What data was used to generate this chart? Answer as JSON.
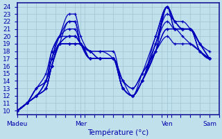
{
  "background_color": "#c0e0ec",
  "grid_color": "#a0c4d4",
  "line_color": "#0000bb",
  "xlabel": "Température (°c)",
  "ylim": [
    9.5,
    24.5
  ],
  "yticks": [
    10,
    11,
    12,
    13,
    14,
    15,
    16,
    17,
    18,
    19,
    20,
    21,
    22,
    23,
    24
  ],
  "xtick_labels": [
    "Madeu",
    "Mer",
    "Ven",
    "Sam"
  ],
  "xtick_positions": [
    0,
    0.33,
    0.78,
    1.0
  ],
  "series": [
    {
      "pts": [
        [
          0,
          10
        ],
        [
          0.05,
          11
        ],
        [
          0.1,
          12
        ],
        [
          0.15,
          13
        ],
        [
          0.18,
          16
        ],
        [
          0.22,
          19
        ],
        [
          0.27,
          22
        ],
        [
          0.3,
          22
        ],
        [
          0.33,
          19
        ],
        [
          0.38,
          17
        ],
        [
          0.43,
          17
        ],
        [
          0.5,
          17
        ],
        [
          0.55,
          13
        ],
        [
          0.6,
          12
        ],
        [
          0.65,
          14
        ],
        [
          0.72,
          19
        ],
        [
          0.78,
          24
        ],
        [
          0.82,
          22
        ],
        [
          0.86,
          21
        ],
        [
          0.9,
          21
        ],
        [
          0.95,
          19
        ],
        [
          1.0,
          17
        ]
      ]
    },
    {
      "pts": [
        [
          0,
          10
        ],
        [
          0.05,
          11
        ],
        [
          0.1,
          13
        ],
        [
          0.15,
          14
        ],
        [
          0.18,
          17
        ],
        [
          0.22,
          20
        ],
        [
          0.27,
          23
        ],
        [
          0.3,
          23
        ],
        [
          0.33,
          20
        ],
        [
          0.38,
          18
        ],
        [
          0.43,
          18
        ],
        [
          0.5,
          18
        ],
        [
          0.55,
          13
        ],
        [
          0.6,
          12
        ],
        [
          0.65,
          14
        ],
        [
          0.72,
          20
        ],
        [
          0.78,
          24
        ],
        [
          0.82,
          22
        ],
        [
          0.86,
          22
        ],
        [
          0.9,
          21
        ],
        [
          0.95,
          19
        ],
        [
          1.0,
          17
        ]
      ]
    },
    {
      "pts": [
        [
          0,
          10
        ],
        [
          0.05,
          11
        ],
        [
          0.1,
          12
        ],
        [
          0.15,
          13
        ],
        [
          0.18,
          16
        ],
        [
          0.22,
          19
        ],
        [
          0.27,
          19
        ],
        [
          0.3,
          19
        ],
        [
          0.33,
          19
        ],
        [
          0.38,
          17
        ],
        [
          0.43,
          17
        ],
        [
          0.5,
          17
        ],
        [
          0.55,
          13
        ],
        [
          0.6,
          12
        ],
        [
          0.65,
          14
        ],
        [
          0.72,
          18
        ],
        [
          0.78,
          24
        ],
        [
          0.82,
          21
        ],
        [
          0.86,
          21
        ],
        [
          0.9,
          21
        ],
        [
          0.95,
          18
        ],
        [
          1.0,
          17
        ]
      ]
    },
    {
      "pts": [
        [
          0,
          10
        ],
        [
          0.05,
          11
        ],
        [
          0.1,
          12
        ],
        [
          0.15,
          14
        ],
        [
          0.18,
          16
        ],
        [
          0.22,
          19
        ],
        [
          0.27,
          20
        ],
        [
          0.3,
          20
        ],
        [
          0.33,
          19
        ],
        [
          0.38,
          17
        ],
        [
          0.43,
          17
        ],
        [
          0.5,
          17
        ],
        [
          0.55,
          14
        ],
        [
          0.6,
          12
        ],
        [
          0.65,
          14
        ],
        [
          0.72,
          18
        ],
        [
          0.78,
          24
        ],
        [
          0.82,
          22
        ],
        [
          0.86,
          21
        ],
        [
          0.9,
          21
        ],
        [
          0.95,
          18
        ],
        [
          1.0,
          17
        ]
      ]
    },
    {
      "pts": [
        [
          0,
          10
        ],
        [
          0.05,
          11
        ],
        [
          0.1,
          13
        ],
        [
          0.15,
          14
        ],
        [
          0.18,
          18
        ],
        [
          0.22,
          20
        ],
        [
          0.27,
          21
        ],
        [
          0.3,
          21
        ],
        [
          0.33,
          19
        ],
        [
          0.38,
          18
        ],
        [
          0.43,
          17
        ],
        [
          0.5,
          17
        ],
        [
          0.55,
          13
        ],
        [
          0.6,
          12
        ],
        [
          0.65,
          15
        ],
        [
          0.72,
          20
        ],
        [
          0.78,
          24
        ],
        [
          0.82,
          21
        ],
        [
          0.86,
          21
        ],
        [
          0.9,
          21
        ],
        [
          0.95,
          19
        ],
        [
          1.0,
          17
        ]
      ]
    },
    {
      "pts": [
        [
          0,
          10
        ],
        [
          0.05,
          11
        ],
        [
          0.1,
          12
        ],
        [
          0.15,
          13
        ],
        [
          0.18,
          16
        ],
        [
          0.22,
          19
        ],
        [
          0.27,
          19
        ],
        [
          0.3,
          19
        ],
        [
          0.33,
          19
        ],
        [
          0.38,
          17
        ],
        [
          0.43,
          17
        ],
        [
          0.5,
          17
        ],
        [
          0.55,
          14
        ],
        [
          0.6,
          13
        ],
        [
          0.65,
          15
        ],
        [
          0.72,
          18
        ],
        [
          0.78,
          21
        ],
        [
          0.82,
          21
        ],
        [
          0.86,
          21
        ],
        [
          0.9,
          21
        ],
        [
          0.95,
          18
        ],
        [
          1.0,
          17
        ]
      ]
    },
    {
      "pts": [
        [
          0,
          10
        ],
        [
          0.05,
          11
        ],
        [
          0.1,
          12
        ],
        [
          0.15,
          14
        ],
        [
          0.18,
          17
        ],
        [
          0.22,
          20
        ],
        [
          0.27,
          20
        ],
        [
          0.3,
          20
        ],
        [
          0.33,
          19
        ],
        [
          0.38,
          18
        ],
        [
          0.43,
          17
        ],
        [
          0.5,
          17
        ],
        [
          0.55,
          13
        ],
        [
          0.6,
          12
        ],
        [
          0.65,
          14
        ],
        [
          0.72,
          19
        ],
        [
          0.78,
          23
        ],
        [
          0.82,
          22
        ],
        [
          0.86,
          21
        ],
        [
          0.9,
          21
        ],
        [
          0.95,
          19
        ],
        [
          1.0,
          17
        ]
      ]
    },
    {
      "pts": [
        [
          0,
          10
        ],
        [
          0.05,
          11
        ],
        [
          0.1,
          13
        ],
        [
          0.15,
          15
        ],
        [
          0.18,
          18
        ],
        [
          0.22,
          20
        ],
        [
          0.27,
          22
        ],
        [
          0.3,
          22
        ],
        [
          0.33,
          19
        ],
        [
          0.38,
          18
        ],
        [
          0.43,
          18
        ],
        [
          0.5,
          17
        ],
        [
          0.55,
          13
        ],
        [
          0.6,
          12
        ],
        [
          0.65,
          14
        ],
        [
          0.72,
          19
        ],
        [
          0.78,
          22
        ],
        [
          0.82,
          21
        ],
        [
          0.86,
          21
        ],
        [
          0.9,
          21
        ],
        [
          0.95,
          19
        ],
        [
          1.0,
          18
        ]
      ]
    },
    {
      "pts": [
        [
          0,
          10
        ],
        [
          0.05,
          11
        ],
        [
          0.1,
          12
        ],
        [
          0.15,
          14
        ],
        [
          0.18,
          17
        ],
        [
          0.22,
          19
        ],
        [
          0.27,
          20
        ],
        [
          0.3,
          20
        ],
        [
          0.33,
          19
        ],
        [
          0.38,
          17
        ],
        [
          0.43,
          17
        ],
        [
          0.5,
          17
        ],
        [
          0.55,
          13
        ],
        [
          0.6,
          12
        ],
        [
          0.65,
          14
        ],
        [
          0.72,
          18
        ],
        [
          0.78,
          21
        ],
        [
          0.82,
          21
        ],
        [
          0.86,
          20
        ],
        [
          0.9,
          19
        ],
        [
          0.95,
          18
        ],
        [
          1.0,
          17
        ]
      ]
    },
    {
      "pts": [
        [
          0,
          10
        ],
        [
          0.05,
          11
        ],
        [
          0.1,
          12
        ],
        [
          0.15,
          13
        ],
        [
          0.18,
          16
        ],
        [
          0.22,
          19
        ],
        [
          0.27,
          19
        ],
        [
          0.3,
          19
        ],
        [
          0.33,
          19
        ],
        [
          0.38,
          17
        ],
        [
          0.43,
          17
        ],
        [
          0.5,
          17
        ],
        [
          0.55,
          14
        ],
        [
          0.6,
          13
        ],
        [
          0.65,
          15
        ],
        [
          0.72,
          18
        ],
        [
          0.78,
          20
        ],
        [
          0.82,
          19
        ],
        [
          0.86,
          19
        ],
        [
          0.9,
          19
        ],
        [
          0.95,
          18
        ],
        [
          1.0,
          17
        ]
      ]
    }
  ],
  "n_interp": 200
}
